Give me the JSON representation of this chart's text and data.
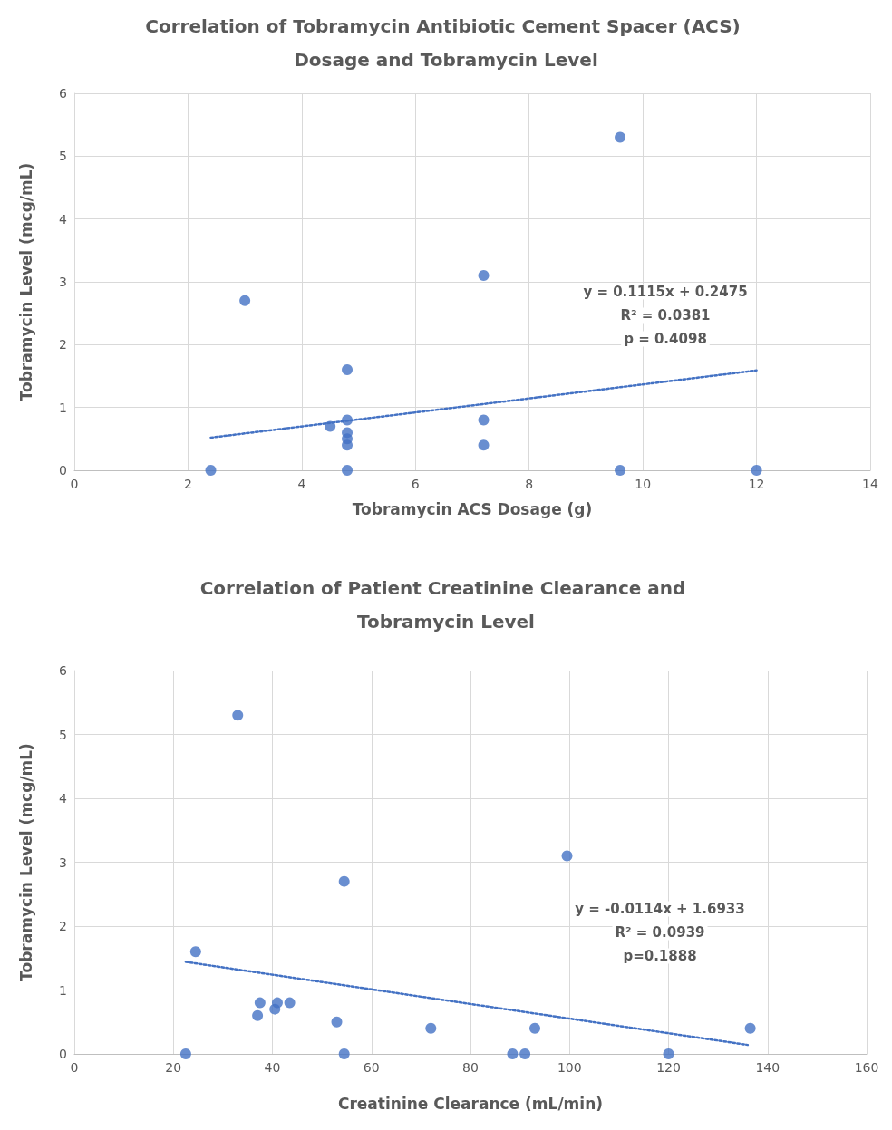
{
  "chart_data": [
    {
      "type": "scatter",
      "title": "Correlation of Tobramycin Antibiotic Cement Spacer (ACS) Dosage and Tobramycin Level",
      "xlabel": "Tobramycin ACS Dosage (g)",
      "ylabel": "Tobramycin Level (mcg/mL)",
      "xlim": [
        0,
        14
      ],
      "xticks": [
        0,
        2,
        4,
        6,
        8,
        10,
        12,
        14
      ],
      "ylim": [
        0,
        6
      ],
      "yticks": [
        0,
        1,
        2,
        3,
        4,
        5,
        6
      ],
      "grid": true,
      "marker": "circle",
      "annotations": [
        "y = 0.1115x + 0.2475",
        "R² = 0.0381",
        "p = 0.4098"
      ],
      "series": [
        {
          "color": "#4472c4",
          "x": [
            2.4,
            3,
            4.5,
            4.8,
            4.8,
            4.8,
            4.8,
            4.8,
            4.8,
            7.2,
            7.2,
            7.2,
            9.6,
            9.6,
            12
          ],
          "values": [
            0,
            2.7,
            0.7,
            1.6,
            0.8,
            0.6,
            0.5,
            0.4,
            0,
            3.1,
            0.8,
            0.4,
            5.3,
            0,
            0
          ]
        },
        {
          "type": "line",
          "line_style": "dotted",
          "marker": "none",
          "color": "#4472c4",
          "x": [
            2.4,
            12
          ],
          "values": [
            0.52,
            1.59
          ]
        }
      ]
    },
    {
      "type": "scatter",
      "title": "Correlation of Patient Creatinine Clearance and Tobramycin Level",
      "xlabel": "Creatinine Clearance (mL/min)",
      "ylabel": "Tobramycin Level (mcg/mL)",
      "xlim": [
        0,
        160
      ],
      "xticks": [
        0,
        20,
        40,
        60,
        80,
        100,
        120,
        140,
        160
      ],
      "ylim": [
        0,
        6
      ],
      "yticks": [
        0,
        1,
        2,
        3,
        4,
        5,
        6
      ],
      "grid": true,
      "marker": "circle",
      "annotations": [
        "y = -0.0114x + 1.6933",
        "R² = 0.0939",
        "p=0.1888"
      ],
      "series": [
        {
          "color": "#4472c4",
          "x": [
            22.5,
            24.5,
            33,
            37,
            37.5,
            40.5,
            41,
            43.5,
            53,
            54.5,
            54.5,
            72,
            88.5,
            91,
            93,
            99.5,
            120,
            136.5
          ],
          "values": [
            0,
            1.6,
            5.3,
            0.6,
            0.8,
            0.7,
            0.8,
            0.8,
            0.5,
            2.7,
            0,
            0.4,
            0,
            0,
            0.4,
            3.1,
            0,
            0.4
          ]
        },
        {
          "type": "line",
          "line_style": "dotted",
          "marker": "none",
          "color": "#4472c4",
          "x": [
            22.5,
            136
          ],
          "values": [
            1.44,
            0.14
          ]
        }
      ]
    }
  ]
}
